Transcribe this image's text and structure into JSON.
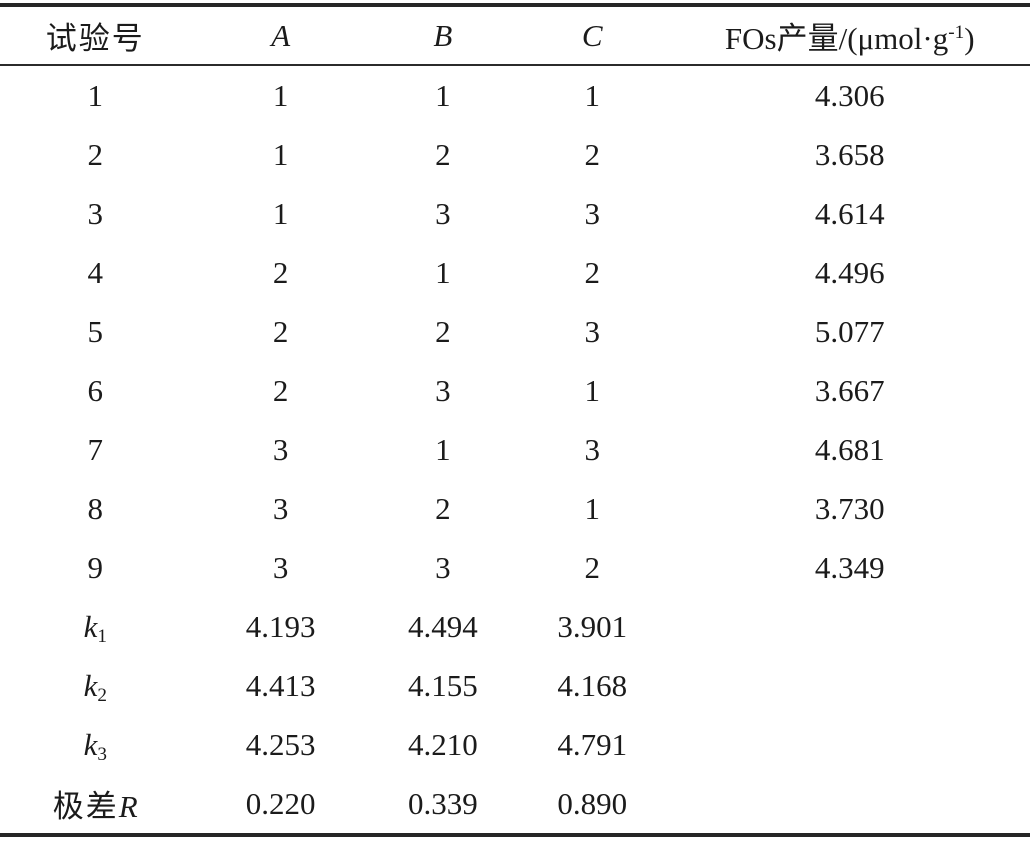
{
  "table": {
    "columns": {
      "no_label": "试验号",
      "factor_a": "A",
      "factor_b": "B",
      "factor_c": "C",
      "yield_header": {
        "pre": "FOs产量/(μmol·g",
        "sup": "-1",
        "post": ")"
      }
    },
    "rows": [
      {
        "no": "1",
        "A": "1",
        "B": "1",
        "C": "1",
        "yield": "4.306"
      },
      {
        "no": "2",
        "A": "1",
        "B": "2",
        "C": "2",
        "yield": "3.658"
      },
      {
        "no": "3",
        "A": "1",
        "B": "3",
        "C": "3",
        "yield": "4.614"
      },
      {
        "no": "4",
        "A": "2",
        "B": "1",
        "C": "2",
        "yield": "4.496"
      },
      {
        "no": "5",
        "A": "2",
        "B": "2",
        "C": "3",
        "yield": "5.077"
      },
      {
        "no": "6",
        "A": "2",
        "B": "3",
        "C": "1",
        "yield": "3.667"
      },
      {
        "no": "7",
        "A": "3",
        "B": "1",
        "C": "3",
        "yield": "4.681"
      },
      {
        "no": "8",
        "A": "3",
        "B": "2",
        "C": "1",
        "yield": "3.730"
      },
      {
        "no": "9",
        "A": "3",
        "B": "3",
        "C": "2",
        "yield": "4.349"
      }
    ],
    "k_rows": [
      {
        "label": {
          "base": "k",
          "sub": "1"
        },
        "A": "4.193",
        "B": "4.494",
        "C": "3.901"
      },
      {
        "label": {
          "base": "k",
          "sub": "2"
        },
        "A": "4.413",
        "B": "4.155",
        "C": "4.168"
      },
      {
        "label": {
          "base": "k",
          "sub": "3"
        },
        "A": "4.253",
        "B": "4.210",
        "C": "4.791"
      }
    ],
    "range_row": {
      "label": {
        "prefix": "极差",
        "symbol": "R"
      },
      "A": "0.220",
      "B": "0.339",
      "C": "0.890"
    }
  }
}
